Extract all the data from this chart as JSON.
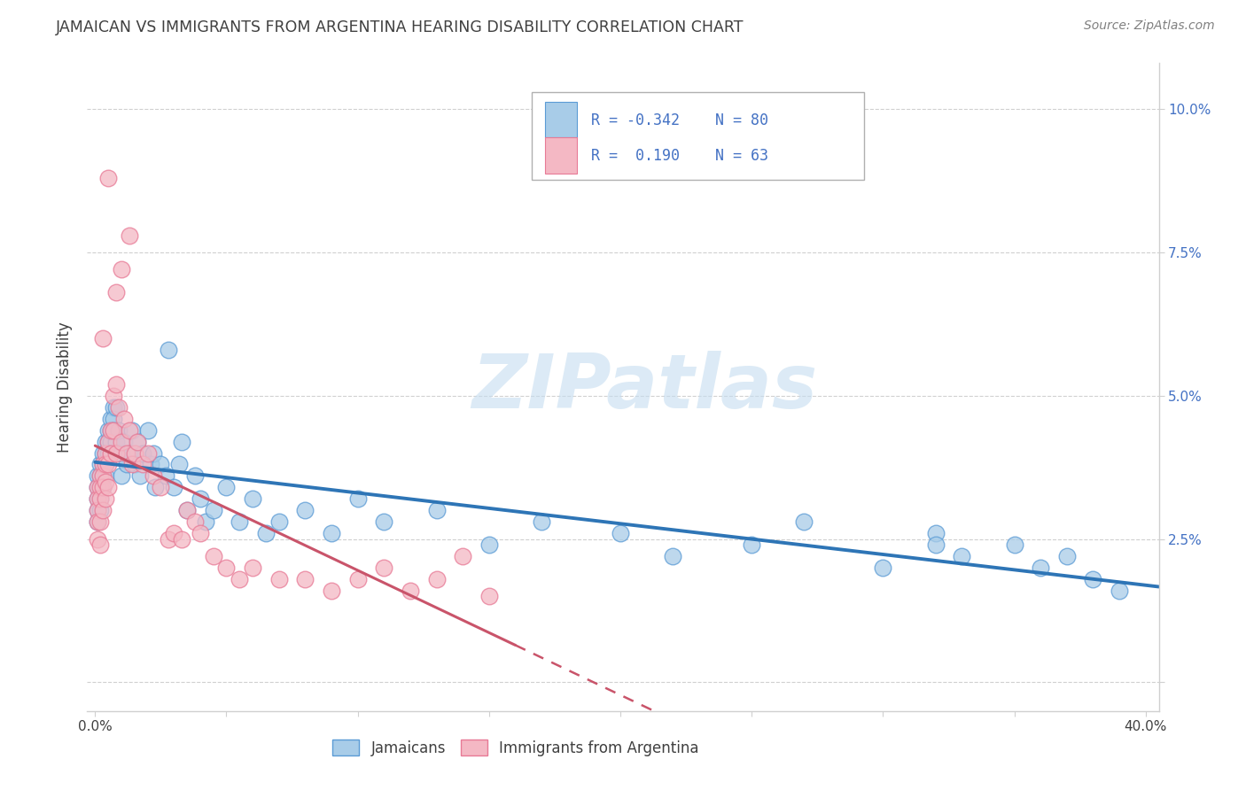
{
  "title": "JAMAICAN VS IMMIGRANTS FROM ARGENTINA HEARING DISABILITY CORRELATION CHART",
  "source": "Source: ZipAtlas.com",
  "ylabel": "Hearing Disability",
  "xlim": [
    0.0,
    0.405
  ],
  "ylim": [
    -0.005,
    0.108
  ],
  "color_blue_fill": "#a8cce8",
  "color_blue_edge": "#5b9bd5",
  "color_blue_line": "#2e75b6",
  "color_pink_fill": "#f4b8c4",
  "color_pink_edge": "#e87a96",
  "color_pink_line": "#c9546a",
  "watermark_color": "#c5ddf0",
  "grid_color": "#d0d0d0",
  "title_color": "#404040",
  "source_color": "#808080",
  "ylabel_color": "#404040",
  "ytick_color": "#4472c4",
  "xtick_color": "#404040",
  "legend_text_color": "#4472c4",
  "ytick_vals": [
    0.0,
    0.025,
    0.05,
    0.075,
    0.1
  ],
  "ytick_labels": [
    "",
    "2.5%",
    "5.0%",
    "7.5%",
    "10.0%"
  ],
  "xtick_vals": [
    0.0,
    0.05,
    0.1,
    0.15,
    0.2,
    0.25,
    0.3,
    0.35,
    0.4
  ],
  "xtick_labels": [
    "0.0%",
    "",
    "",
    "",
    "",
    "",
    "",
    "",
    "40.0%"
  ],
  "blue_x": [
    0.001,
    0.001,
    0.001,
    0.001,
    0.001,
    0.002,
    0.002,
    0.002,
    0.002,
    0.002,
    0.003,
    0.003,
    0.003,
    0.003,
    0.004,
    0.004,
    0.004,
    0.004,
    0.005,
    0.005,
    0.005,
    0.006,
    0.006,
    0.006,
    0.007,
    0.007,
    0.007,
    0.008,
    0.008,
    0.009,
    0.01,
    0.01,
    0.011,
    0.012,
    0.013,
    0.014,
    0.015,
    0.016,
    0.017,
    0.018,
    0.02,
    0.021,
    0.022,
    0.023,
    0.025,
    0.027,
    0.028,
    0.03,
    0.032,
    0.033,
    0.035,
    0.038,
    0.04,
    0.042,
    0.045,
    0.05,
    0.055,
    0.06,
    0.065,
    0.07,
    0.08,
    0.09,
    0.1,
    0.11,
    0.13,
    0.15,
    0.17,
    0.2,
    0.22,
    0.25,
    0.27,
    0.3,
    0.32,
    0.33,
    0.35,
    0.36,
    0.37,
    0.38,
    0.39,
    0.32
  ],
  "blue_y": [
    0.036,
    0.034,
    0.032,
    0.03,
    0.028,
    0.038,
    0.036,
    0.034,
    0.032,
    0.03,
    0.04,
    0.038,
    0.036,
    0.034,
    0.042,
    0.04,
    0.038,
    0.036,
    0.044,
    0.042,
    0.04,
    0.046,
    0.044,
    0.042,
    0.048,
    0.046,
    0.044,
    0.048,
    0.042,
    0.044,
    0.04,
    0.036,
    0.042,
    0.038,
    0.04,
    0.044,
    0.038,
    0.042,
    0.036,
    0.04,
    0.044,
    0.038,
    0.04,
    0.034,
    0.038,
    0.036,
    0.058,
    0.034,
    0.038,
    0.042,
    0.03,
    0.036,
    0.032,
    0.028,
    0.03,
    0.034,
    0.028,
    0.032,
    0.026,
    0.028,
    0.03,
    0.026,
    0.032,
    0.028,
    0.03,
    0.024,
    0.028,
    0.026,
    0.022,
    0.024,
    0.028,
    0.02,
    0.026,
    0.022,
    0.024,
    0.02,
    0.022,
    0.018,
    0.016,
    0.024
  ],
  "pink_x": [
    0.001,
    0.001,
    0.001,
    0.001,
    0.001,
    0.002,
    0.002,
    0.002,
    0.002,
    0.002,
    0.003,
    0.003,
    0.003,
    0.003,
    0.004,
    0.004,
    0.004,
    0.004,
    0.005,
    0.005,
    0.005,
    0.006,
    0.006,
    0.007,
    0.007,
    0.008,
    0.008,
    0.009,
    0.01,
    0.011,
    0.012,
    0.013,
    0.014,
    0.015,
    0.016,
    0.018,
    0.02,
    0.022,
    0.025,
    0.028,
    0.03,
    0.033,
    0.035,
    0.038,
    0.04,
    0.045,
    0.05,
    0.055,
    0.06,
    0.07,
    0.08,
    0.09,
    0.1,
    0.11,
    0.12,
    0.13,
    0.14,
    0.15,
    0.008,
    0.01,
    0.005,
    0.013,
    0.003
  ],
  "pink_y": [
    0.034,
    0.032,
    0.03,
    0.028,
    0.025,
    0.036,
    0.034,
    0.032,
    0.028,
    0.024,
    0.038,
    0.036,
    0.034,
    0.03,
    0.04,
    0.038,
    0.035,
    0.032,
    0.042,
    0.038,
    0.034,
    0.044,
    0.04,
    0.05,
    0.044,
    0.052,
    0.04,
    0.048,
    0.042,
    0.046,
    0.04,
    0.044,
    0.038,
    0.04,
    0.042,
    0.038,
    0.04,
    0.036,
    0.034,
    0.025,
    0.026,
    0.025,
    0.03,
    0.028,
    0.026,
    0.022,
    0.02,
    0.018,
    0.02,
    0.018,
    0.018,
    0.016,
    0.018,
    0.02,
    0.016,
    0.018,
    0.022,
    0.015,
    0.068,
    0.072,
    0.088,
    0.078,
    0.06
  ]
}
